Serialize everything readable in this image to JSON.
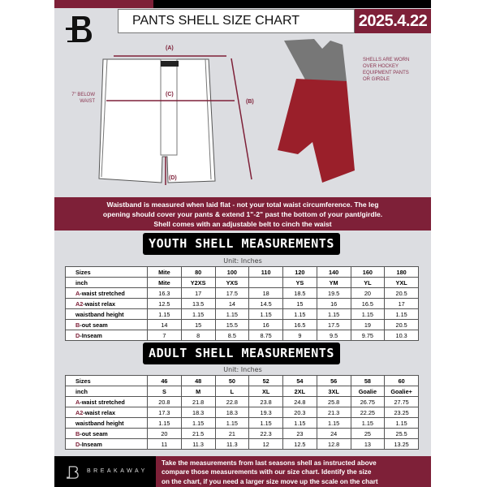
{
  "header": {
    "title": "PANTS SHELL SIZE CHART",
    "date": "2025.4.22"
  },
  "diagram": {
    "a": "(A)",
    "b": "(B)",
    "c": "(C)",
    "d": "(D)",
    "c_note": [
      "7\" BELOW",
      "WAIST"
    ],
    "photo_note": [
      "SHELLS ARE WORN",
      "OVER HOCKEY",
      "EQUIPMENT PANTS",
      "OR GIRDLE"
    ]
  },
  "banner": [
    "Waistband is measured when laid flat - not your total waist circumference. The leg",
    "opening should cover your pants & extend 1\"-2\" past the bottom of your pant/girdle.",
    "Shell comes with an adjustable belt to cinch the waist"
  ],
  "youth": {
    "title": "YOUTH SHELL MEASUREMENTS",
    "unit": "Unit: Inches",
    "rows": [
      {
        "mark": "",
        "label": "Sizes",
        "values": [
          "Mite",
          "80",
          "100",
          "110",
          "120",
          "140",
          "160",
          "180"
        ]
      },
      {
        "mark": "",
        "label": "inch",
        "values": [
          "Mite",
          "Y2XS",
          "YXS",
          "",
          "YS",
          "YM",
          "YL",
          "YXL"
        ]
      },
      {
        "mark": "A",
        "label": "-waist stretched",
        "values": [
          "16.3",
          "17",
          "17.5",
          "18",
          "18.5",
          "19.5",
          "20",
          "20.5"
        ]
      },
      {
        "mark": "A2",
        "label": "-waist relax",
        "values": [
          "12.5",
          "13.5",
          "14",
          "14.5",
          "15",
          "16",
          "16.5",
          "17"
        ]
      },
      {
        "mark": "",
        "label": "waistband height",
        "values": [
          "1.15",
          "1.15",
          "1.15",
          "1.15",
          "1.15",
          "1.15",
          "1.15",
          "1.15"
        ]
      },
      {
        "mark": "B",
        "label": "-out seam",
        "values": [
          "14",
          "15",
          "15.5",
          "16",
          "16.5",
          "17.5",
          "19",
          "20.5"
        ]
      },
      {
        "mark": "D",
        "label": "-Inseam",
        "values": [
          "7",
          "8",
          "8.5",
          "8.75",
          "9",
          "9.5",
          "9.75",
          "10.3"
        ]
      }
    ]
  },
  "adult": {
    "title": "ADULT SHELL MEASUREMENTS",
    "unit": "Unit: Inches",
    "rows": [
      {
        "mark": "",
        "label": "Sizes",
        "values": [
          "46",
          "48",
          "50",
          "52",
          "54",
          "56",
          "58",
          "60"
        ]
      },
      {
        "mark": "",
        "label": "inch",
        "values": [
          "S",
          "M",
          "L",
          "XL",
          "2XL",
          "3XL",
          "Goalie",
          "Goalie+"
        ]
      },
      {
        "mark": "A",
        "label": "-waist stretched",
        "values": [
          "20.8",
          "21.8",
          "22.8",
          "23.8",
          "24.8",
          "25.8",
          "26.75",
          "27.75"
        ]
      },
      {
        "mark": "A2",
        "label": "-waist relax",
        "values": [
          "17.3",
          "18.3",
          "18.3",
          "19.3",
          "20.3",
          "21.3",
          "22.25",
          "23.25"
        ]
      },
      {
        "mark": "",
        "label": "waistband height",
        "values": [
          "1.15",
          "1.15",
          "1.15",
          "1.15",
          "1.15",
          "1.15",
          "1.15",
          "1.15"
        ]
      },
      {
        "mark": "B",
        "label": "-out seam",
        "values": [
          "20",
          "21.5",
          "21",
          "22.3",
          "23",
          "24",
          "25",
          "25.5"
        ]
      },
      {
        "mark": "D",
        "label": "-Inseam",
        "values": [
          "11",
          "11.3",
          "11.3",
          "12",
          "12.5",
          "12.8",
          "13",
          "13.25"
        ]
      }
    ]
  },
  "footer": {
    "brand": "BREAKAWAY",
    "text": [
      "Take the measurements from last seasons shell as instructed above",
      "compare those measurements  with our size chart. Identify the size",
      "on the chart, if you need a larger size move up the scale on the chart"
    ]
  },
  "colors": {
    "brand": "#7e2038",
    "dark": "#000000",
    "background": "#dcdde1"
  }
}
